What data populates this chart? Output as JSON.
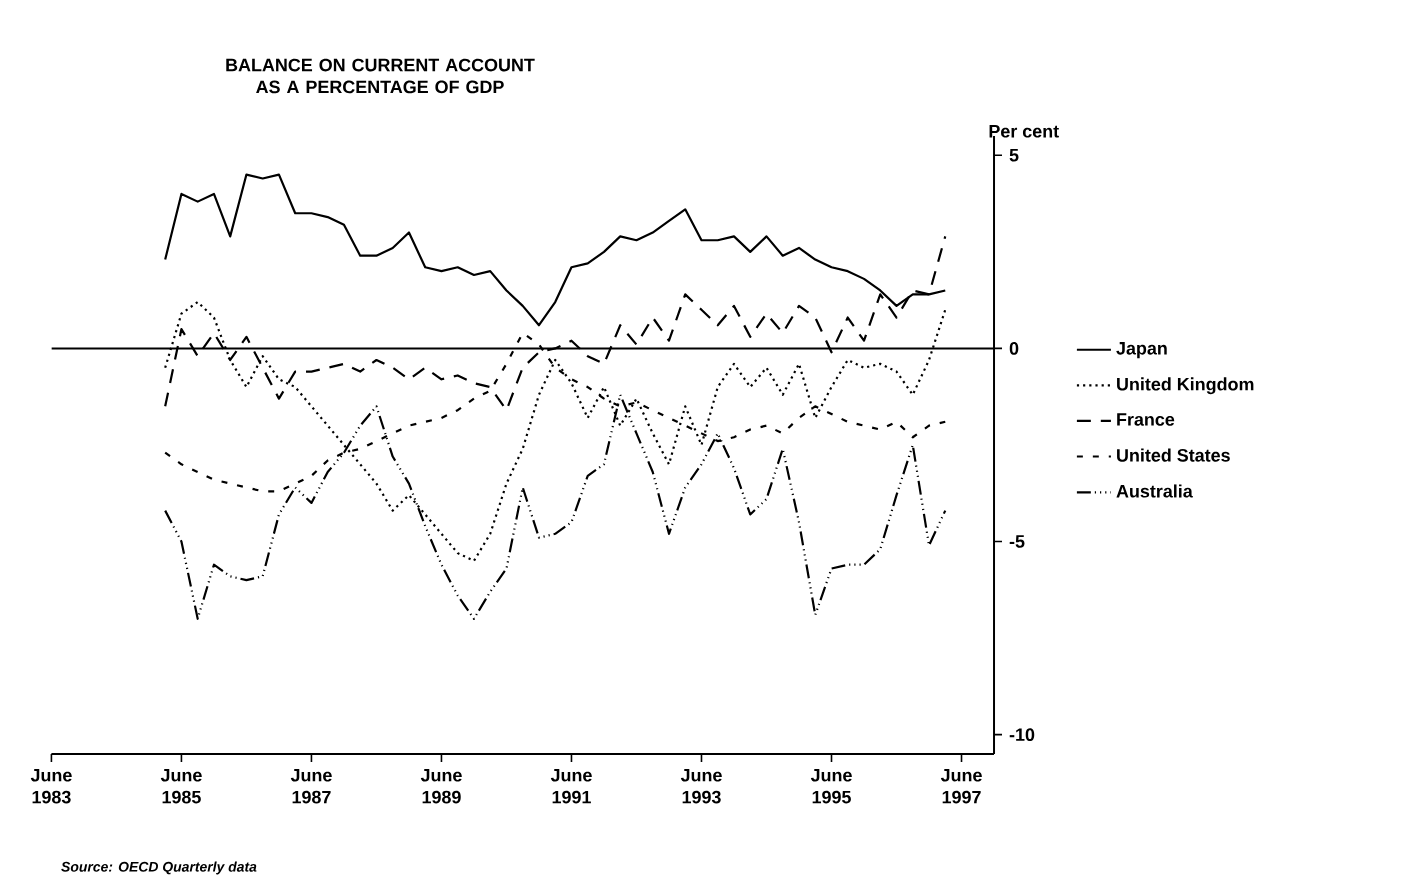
{
  "chart_data": {
    "type": "line",
    "title": "BALANCE ON CURRENT ACCOUNT AS A PERCENTAGE OF GDP",
    "ylabel": "Per cent",
    "annotations": [
      "Source: OECD Quarterly data"
    ],
    "x": [
      "1985-03",
      "1985-06",
      "1985-09",
      "1985-12",
      "1986-03",
      "1986-06",
      "1986-09",
      "1986-12",
      "1987-03",
      "1987-06",
      "1987-09",
      "1987-12",
      "1988-03",
      "1988-06",
      "1988-09",
      "1988-12",
      "1989-03",
      "1989-06",
      "1989-09",
      "1989-12",
      "1990-03",
      "1990-06",
      "1990-09",
      "1990-12",
      "1991-03",
      "1991-06",
      "1991-09",
      "1991-12",
      "1992-03",
      "1992-06",
      "1992-09",
      "1992-12",
      "1993-03",
      "1993-06",
      "1993-09",
      "1993-12",
      "1994-03",
      "1994-06",
      "1994-09",
      "1994-12",
      "1995-03",
      "1995-06",
      "1995-09",
      "1995-12",
      "1996-03",
      "1996-06",
      "1996-09",
      "1996-12",
      "1997-03"
    ],
    "series": [
      {
        "name": "Japan",
        "color": "#000000",
        "line_style": "solid",
        "values": [
          2.3,
          4.0,
          3.8,
          4.0,
          2.9,
          4.5,
          4.4,
          4.5,
          3.5,
          3.5,
          3.4,
          3.2,
          2.4,
          2.4,
          2.6,
          3.0,
          2.1,
          2.0,
          2.1,
          1.9,
          2.0,
          1.5,
          1.1,
          0.6,
          1.2,
          2.1,
          2.2,
          2.5,
          2.9,
          2.8,
          3.0,
          3.3,
          3.6,
          2.8,
          2.8,
          2.9,
          2.5,
          2.9,
          2.4,
          2.6,
          2.3,
          2.1,
          2.0,
          1.8,
          1.5,
          1.1,
          1.4,
          1.4,
          1.5
        ]
      },
      {
        "name": "United Kingdom",
        "color": "#000000",
        "line_style": "dotted",
        "values": [
          -0.5,
          0.9,
          1.2,
          0.8,
          -0.3,
          -1.0,
          -0.2,
          -0.8,
          -1.0,
          -1.5,
          -2.0,
          -2.5,
          -3.0,
          -3.5,
          -4.2,
          -3.8,
          -4.3,
          -4.8,
          -5.3,
          -5.5,
          -4.8,
          -3.5,
          -2.6,
          -1.2,
          -0.3,
          -0.9,
          -1.8,
          -1.0,
          -2.0,
          -1.3,
          -2.2,
          -3.0,
          -1.5,
          -2.5,
          -1.0,
          -0.4,
          -1.0,
          -0.5,
          -1.2,
          -0.4,
          -1.8,
          -1.0,
          -0.3,
          -0.5,
          -0.4,
          -0.6,
          -1.2,
          -0.3,
          1.0
        ]
      },
      {
        "name": "France",
        "color": "#000000",
        "line_style": "dashed",
        "values": [
          -1.5,
          0.5,
          -0.2,
          0.4,
          -0.3,
          0.3,
          -0.5,
          -1.3,
          -0.6,
          -0.6,
          -0.5,
          -0.4,
          -0.6,
          -0.3,
          -0.5,
          -0.8,
          -0.5,
          -0.8,
          -0.7,
          -0.9,
          -1.0,
          -1.6,
          -0.5,
          -0.1,
          0.0,
          0.2,
          -0.2,
          -0.4,
          0.6,
          0.1,
          0.8,
          0.2,
          1.4,
          1.0,
          0.6,
          1.1,
          0.3,
          0.9,
          0.4,
          1.1,
          0.8,
          -0.1,
          0.8,
          0.2,
          1.4,
          0.8,
          1.5,
          1.4,
          2.9
        ]
      },
      {
        "name": "United States",
        "color": "#000000",
        "line_style": "densely dashed",
        "values": [
          -2.7,
          -3.0,
          -3.2,
          -3.4,
          -3.5,
          -3.6,
          -3.7,
          -3.7,
          -3.5,
          -3.3,
          -2.9,
          -2.7,
          -2.6,
          -2.4,
          -2.2,
          -2.0,
          -1.9,
          -1.8,
          -1.6,
          -1.3,
          -1.1,
          -0.4,
          0.4,
          0.1,
          -0.5,
          -0.8,
          -1.0,
          -1.3,
          -1.5,
          -1.4,
          -1.6,
          -1.8,
          -2.0,
          -2.2,
          -2.4,
          -2.3,
          -2.1,
          -2.0,
          -2.2,
          -1.8,
          -1.5,
          -1.7,
          -1.9,
          -2.0,
          -2.1,
          -1.9,
          -2.3,
          -2.0,
          -1.9
        ]
      },
      {
        "name": "Australia",
        "color": "#000000",
        "line_style": "dashdotted",
        "values": [
          -4.2,
          -5.0,
          -7.0,
          -5.6,
          -5.9,
          -6.0,
          -5.9,
          -4.3,
          -3.6,
          -4.0,
          -3.2,
          -2.7,
          -2.0,
          -1.5,
          -2.8,
          -3.5,
          -4.6,
          -5.6,
          -6.4,
          -7.0,
          -6.3,
          -5.7,
          -3.6,
          -4.9,
          -4.8,
          -4.5,
          -3.3,
          -3.0,
          -1.2,
          -2.2,
          -3.2,
          -4.8,
          -3.6,
          -3.0,
          -2.2,
          -3.1,
          -4.3,
          -3.9,
          -2.6,
          -4.5,
          -6.9,
          -5.7,
          -5.6,
          -5.6,
          -5.2,
          -3.8,
          -2.5,
          -5.1,
          -4.2
        ]
      }
    ],
    "xlim": [
      "1983-06",
      "1997-12"
    ],
    "xticks": [
      {
        "value": "1983-06",
        "label": "June 1983"
      },
      {
        "value": "1985-06",
        "label": "June 1985"
      },
      {
        "value": "1987-06",
        "label": "June 1987"
      },
      {
        "value": "1989-06",
        "label": "June 1989"
      },
      {
        "value": "1991-06",
        "label": "June 1991"
      },
      {
        "value": "1993-06",
        "label": "June 1993"
      },
      {
        "value": "1995-06",
        "label": "June 1995"
      },
      {
        "value": "1997-06",
        "label": "June 1997"
      }
    ],
    "ylim": [
      -10.5,
      5.5
    ],
    "yticks": [
      5,
      0,
      -5,
      -10
    ],
    "ref_lines": [
      {
        "axis": "y",
        "value": 0,
        "color": "#000000"
      }
    ],
    "legend": "right",
    "grid": false,
    "marker": "none"
  }
}
